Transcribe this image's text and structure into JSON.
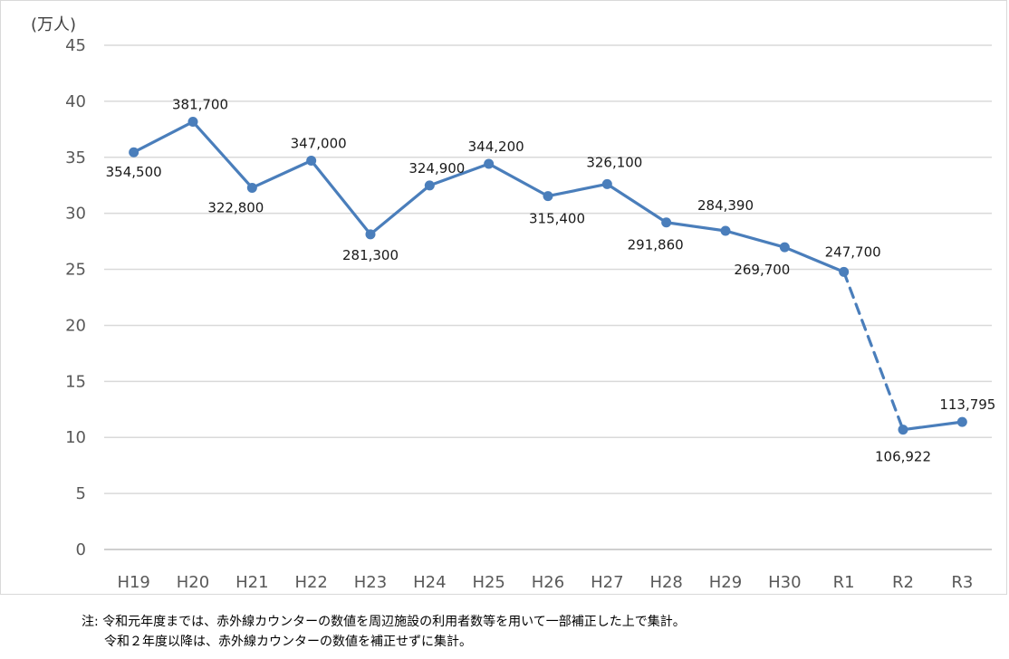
{
  "chart_data": {
    "type": "line",
    "unit_label": "(万人)",
    "categories": [
      "H19",
      "H20",
      "H21",
      "H22",
      "H23",
      "H24",
      "H25",
      "H26",
      "H27",
      "H28",
      "H29",
      "H30",
      "R1",
      "R2",
      "R3"
    ],
    "series": [
      {
        "values": [
          354500,
          381700,
          322800,
          347000,
          281300,
          324900,
          344200,
          315400,
          326100,
          291860,
          284390,
          269700,
          247700,
          106922,
          113795
        ],
        "data_labels": [
          "354,500",
          "381,700",
          "322,800",
          "347,000",
          "281,300",
          "324,900",
          "344,200",
          "315,400",
          "326,100",
          "291,860",
          "284,390",
          "269,700",
          "247,700",
          "106,922",
          "113,795"
        ],
        "dashed_segments": [
          [
            12,
            13
          ]
        ],
        "color": "#4a7ebb"
      }
    ],
    "ylim": [
      0,
      45
    ],
    "y_ticks": [
      0,
      5,
      10,
      15,
      20,
      25,
      30,
      35,
      40,
      45
    ],
    "y_scale_divisor": 10000,
    "grid": true
  },
  "notes": {
    "line1": "注: 令和元年度までは、赤外線カウンターの数値を周辺施設の利用者数等を用いて一部補正した上で集計。",
    "line2": "令和２年度以降は、赤外線カウンターの数値を補正せずに集計。"
  }
}
